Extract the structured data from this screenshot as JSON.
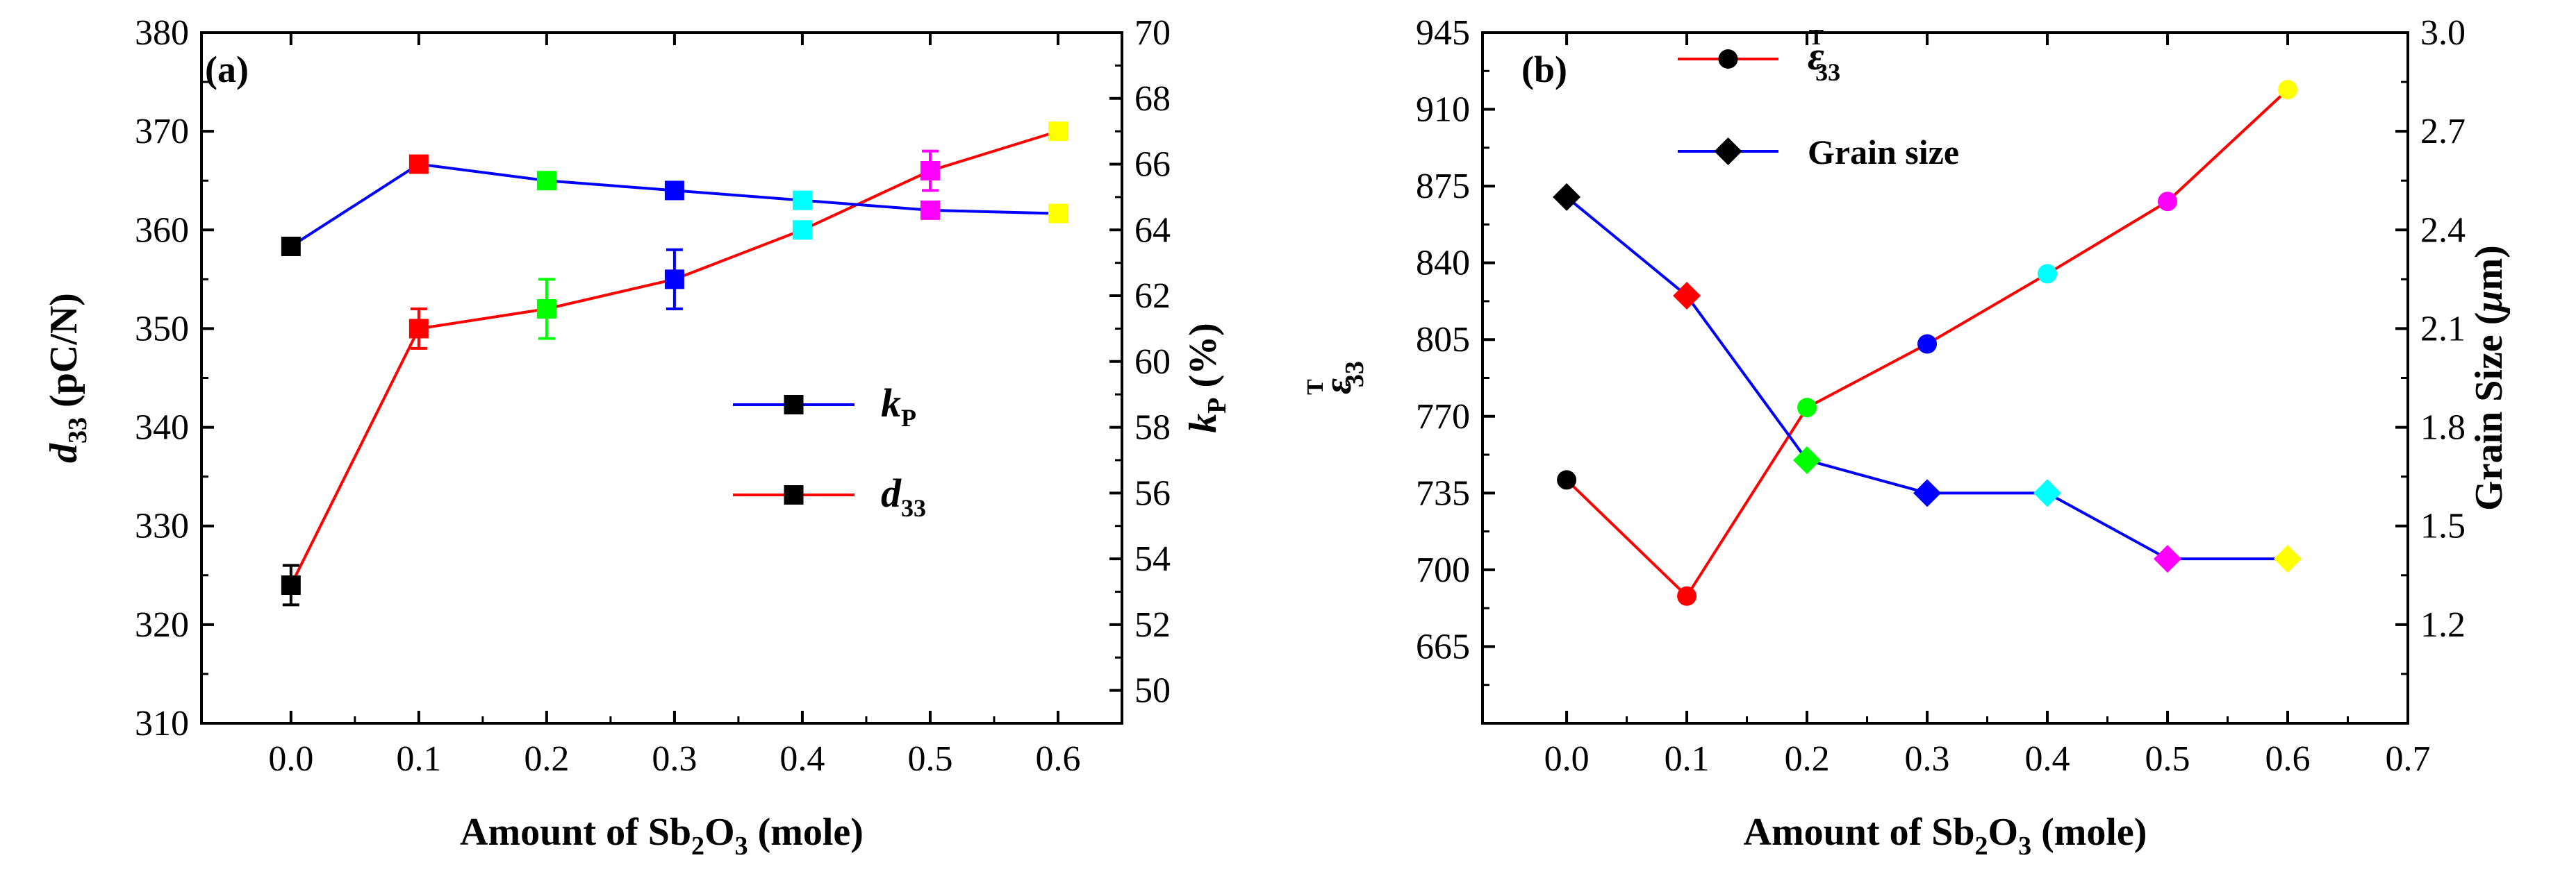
{
  "chart_data": [
    {
      "type": "line",
      "panel_label": "(a)",
      "x": [
        0.0,
        0.1,
        0.2,
        0.3,
        0.4,
        0.5,
        0.6
      ],
      "xlim": [
        -0.07,
        0.65
      ],
      "xticks": [
        "0.0",
        "0.1",
        "0.2",
        "0.3",
        "0.4",
        "0.5",
        "0.6"
      ],
      "xlabel": {
        "pre": "Amount of Sb",
        "sub1": "2",
        "mid": "O",
        "sub2": "3",
        "post": " (mole)"
      },
      "ylabel_left": {
        "sym": "d",
        "sub": "33",
        "post": " (pC/N)"
      },
      "ylim_left": [
        310,
        380
      ],
      "yticks_left": [
        "310",
        "320",
        "330",
        "340",
        "350",
        "360",
        "370",
        "380"
      ],
      "ylabel_right": {
        "sym": "k",
        "sub": "P",
        "post": " (%)"
      },
      "ylim_right": [
        49,
        70
      ],
      "yticks_right": [
        "50",
        "52",
        "54",
        "56",
        "58",
        "60",
        "62",
        "64",
        "66",
        "68",
        "70"
      ],
      "series": [
        {
          "name": "d33",
          "legend": {
            "sym": "d",
            "sub": "33"
          },
          "axis": "left",
          "line_color": "#ff0000",
          "values": [
            324,
            350,
            352,
            355,
            360,
            366,
            370
          ],
          "errors": [
            2,
            2,
            3,
            3,
            0,
            2,
            0
          ],
          "marker": "square",
          "marker_colors": [
            "#000000",
            "#ff0000",
            "#00ff00",
            "#0000ff",
            "#00ffff",
            "#ff00ff",
            "#ffff00"
          ]
        },
        {
          "name": "kP",
          "legend": {
            "sym": "k",
            "sub": "P"
          },
          "axis": "right",
          "line_color": "#0000ff",
          "values": [
            63.5,
            66.0,
            65.5,
            65.2,
            64.9,
            64.6,
            64.5
          ],
          "marker": "square",
          "marker_colors": [
            "#000000",
            "#ff0000",
            "#00ff00",
            "#0000ff",
            "#00ffff",
            "#ff00ff",
            "#ffff00"
          ]
        }
      ]
    },
    {
      "type": "line",
      "panel_label": "(b)",
      "x": [
        0.0,
        0.1,
        0.2,
        0.3,
        0.4,
        0.5,
        0.6
      ],
      "xlim": [
        -0.07,
        0.7
      ],
      "xticks": [
        "0.0",
        "0.1",
        "0.2",
        "0.3",
        "0.4",
        "0.5",
        "0.6",
        "0.7"
      ],
      "xlabel": {
        "pre": "Amount of Sb",
        "sub1": "2",
        "mid": "O",
        "sub2": "3",
        "post": " (mole)"
      },
      "ylabel_left": {
        "sym": "ε",
        "sub": "33",
        "sup": "T"
      },
      "ylim_left": [
        630,
        945
      ],
      "yticks_left": [
        "665",
        "700",
        "735",
        "770",
        "805",
        "840",
        "875",
        "910",
        "945"
      ],
      "ylabel_right": {
        "pre": "Grain Size (",
        "sym": "μ",
        "post": "m)"
      },
      "ylim_right": [
        0.9,
        3.0
      ],
      "yticks_right": [
        "1.2",
        "1.5",
        "1.8",
        "2.1",
        "2.4",
        "2.7",
        "3.0"
      ],
      "series": [
        {
          "name": "epsilon33T",
          "legend": {
            "sym": "ε",
            "sub": "33",
            "sup": "T"
          },
          "axis": "left",
          "line_color": "#ff0000",
          "values": [
            741,
            688,
            774,
            803,
            835,
            868,
            919
          ],
          "marker": "circle",
          "marker_colors": [
            "#000000",
            "#ff0000",
            "#00ff00",
            "#0000ff",
            "#00ffff",
            "#ff00ff",
            "#ffff00"
          ]
        },
        {
          "name": "Grain size",
          "legend": {
            "text": "Grain size"
          },
          "axis": "right",
          "line_color": "#0000ff",
          "values": [
            2.5,
            2.2,
            1.7,
            1.6,
            1.6,
            1.4,
            1.4
          ],
          "marker": "diamond",
          "marker_colors": [
            "#000000",
            "#ff0000",
            "#00ff00",
            "#0000ff",
            "#00ffff",
            "#ff00ff",
            "#ffff00"
          ]
        }
      ]
    }
  ]
}
